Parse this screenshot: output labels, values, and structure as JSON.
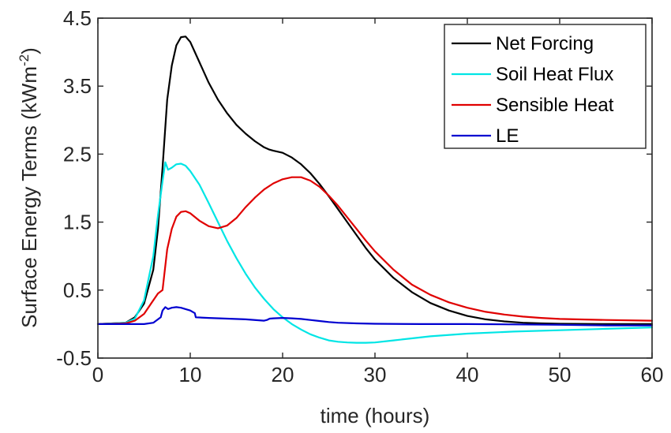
{
  "chart_data": {
    "type": "line",
    "xlabel": "time (hours)",
    "ylabel": "Surface Energy Terms (kWm",
    "ylabel_superscript": "-2",
    "ylabel_close": ")",
    "xlim": [
      0,
      60
    ],
    "ylim": [
      -0.5,
      4.5
    ],
    "xticks": [
      0,
      10,
      20,
      30,
      40,
      50,
      60
    ],
    "yticks": [
      -0.5,
      0.5,
      1.5,
      2.5,
      3.5,
      4.5
    ],
    "xtick_labels": [
      "0",
      "10",
      "20",
      "30",
      "40",
      "50",
      "60"
    ],
    "ytick_labels": [
      "-0.5",
      "0.5",
      "1.5",
      "2.5",
      "3.5",
      "4.5"
    ],
    "grid": false,
    "legend_position": "top-right",
    "series": [
      {
        "name": "Net Forcing",
        "color": "#000000",
        "x": [
          0,
          3,
          4,
          5,
          6,
          6.5,
          7,
          7.5,
          8,
          8.5,
          9,
          9.5,
          10,
          11,
          12,
          13,
          14,
          15,
          16,
          17,
          18,
          18.5,
          19,
          20,
          21,
          22,
          23,
          24,
          25,
          26,
          27,
          28,
          29,
          30,
          32,
          34,
          36,
          38,
          40,
          42,
          44,
          46,
          48,
          50,
          55,
          60
        ],
        "y": [
          0,
          0.02,
          0.1,
          0.3,
          0.8,
          1.4,
          2.3,
          3.3,
          3.8,
          4.1,
          4.22,
          4.23,
          4.15,
          3.85,
          3.55,
          3.3,
          3.1,
          2.93,
          2.8,
          2.69,
          2.6,
          2.57,
          2.55,
          2.52,
          2.45,
          2.35,
          2.22,
          2.06,
          1.88,
          1.69,
          1.5,
          1.31,
          1.12,
          0.95,
          0.68,
          0.47,
          0.31,
          0.2,
          0.12,
          0.07,
          0.04,
          0.02,
          0.01,
          0.005,
          0.0,
          0.0
        ]
      },
      {
        "name": "Soil Heat Flux",
        "color": "#00e5e5",
        "x": [
          0,
          3,
          4,
          5,
          6,
          6.5,
          7,
          7.3,
          7.6,
          8,
          8.5,
          9,
          9.5,
          10,
          11,
          12,
          13,
          14,
          15,
          16,
          17,
          18,
          19,
          20,
          21,
          22,
          23,
          24,
          25,
          26,
          27,
          28,
          29,
          30,
          32,
          34,
          36,
          40,
          45,
          50,
          55,
          60
        ],
        "y": [
          0,
          0.02,
          0.08,
          0.35,
          1.0,
          1.6,
          2.1,
          2.38,
          2.27,
          2.3,
          2.35,
          2.36,
          2.33,
          2.25,
          2.05,
          1.78,
          1.5,
          1.22,
          0.97,
          0.74,
          0.54,
          0.37,
          0.22,
          0.1,
          0.0,
          -0.08,
          -0.15,
          -0.2,
          -0.24,
          -0.26,
          -0.27,
          -0.275,
          -0.275,
          -0.27,
          -0.24,
          -0.21,
          -0.18,
          -0.14,
          -0.11,
          -0.09,
          -0.07,
          -0.05
        ]
      },
      {
        "name": "Sensible Heat",
        "color": "#e00000",
        "x": [
          0,
          3,
          4,
          5,
          6,
          6.5,
          7,
          7.5,
          8,
          8.5,
          9,
          9.5,
          10,
          11,
          12,
          13,
          14,
          15,
          16,
          17,
          18,
          19,
          20,
          21,
          22,
          23,
          24,
          25,
          26,
          27,
          28,
          29,
          30,
          32,
          34,
          36,
          38,
          40,
          42,
          44,
          46,
          48,
          50,
          55,
          60
        ],
        "y": [
          0,
          0.01,
          0.05,
          0.15,
          0.35,
          0.45,
          0.5,
          1.1,
          1.4,
          1.58,
          1.65,
          1.66,
          1.63,
          1.52,
          1.44,
          1.41,
          1.45,
          1.56,
          1.72,
          1.86,
          1.98,
          2.07,
          2.13,
          2.16,
          2.16,
          2.11,
          2.02,
          1.89,
          1.74,
          1.57,
          1.4,
          1.23,
          1.07,
          0.8,
          0.58,
          0.43,
          0.32,
          0.24,
          0.18,
          0.14,
          0.11,
          0.09,
          0.075,
          0.06,
          0.05
        ]
      },
      {
        "name": "LE",
        "color": "#0000d0",
        "x": [
          0,
          5,
          6,
          6.8,
          7,
          7.3,
          7.6,
          8,
          8.5,
          9,
          9.5,
          10,
          10.5,
          10.6,
          12,
          14,
          16,
          18,
          18.3,
          18.6,
          19,
          20,
          21,
          22,
          23,
          24,
          25,
          26,
          28,
          30,
          35,
          40,
          45,
          50,
          55,
          60
        ],
        "y": [
          0,
          0.0,
          0.02,
          0.1,
          0.2,
          0.25,
          0.22,
          0.24,
          0.25,
          0.24,
          0.22,
          0.2,
          0.16,
          0.1,
          0.09,
          0.08,
          0.07,
          0.05,
          0.06,
          0.08,
          0.085,
          0.09,
          0.085,
          0.075,
          0.06,
          0.045,
          0.03,
          0.02,
          0.01,
          0.005,
          0.0,
          0.0,
          -0.005,
          -0.01,
          -0.02,
          -0.02
        ]
      }
    ]
  }
}
